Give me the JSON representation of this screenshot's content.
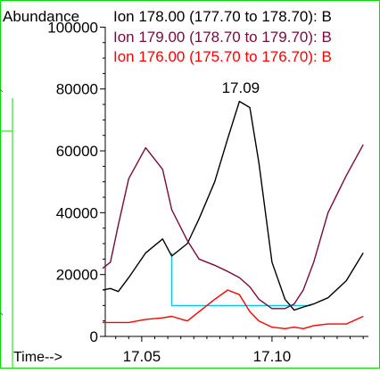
{
  "chart_data": {
    "type": "line",
    "ylabel": "Abundance",
    "xlabel": "Time-->",
    "xlim": [
      17.036,
      17.137
    ],
    "ylim": [
      0,
      103000
    ],
    "x_ticks": [
      17.05,
      17.1
    ],
    "x_tick_labels": [
      "17.05",
      "17.10"
    ],
    "y_ticks": [
      0,
      20000,
      40000,
      60000,
      80000,
      100000
    ],
    "y_tick_labels": [
      "0",
      "20000",
      "40000",
      "60000",
      "80000",
      "100000"
    ],
    "grid": false,
    "legend_position": "top",
    "annotations": [
      {
        "text": "17.09",
        "x": 17.088,
        "y": 77000
      }
    ],
    "baseline_segment": {
      "color": "#00c8e6",
      "x": [
        17.0615,
        17.0615,
        17.115
      ],
      "y": [
        27000,
        10000,
        10000
      ]
    },
    "series": [
      {
        "name": "Ion 178.00 (177.70 to 178.70): B",
        "color": "#000000",
        "x": [
          17.035,
          17.038,
          17.041,
          17.045,
          17.0515,
          17.058,
          17.0615,
          17.0675,
          17.072,
          17.078,
          17.083,
          17.0875,
          17.0915,
          17.095,
          17.1,
          17.105,
          17.1085,
          17.112,
          17.116,
          17.1215,
          17.1285,
          17.135
        ],
        "y": [
          15000,
          15500,
          14500,
          19000,
          27000,
          31500,
          26000,
          30000,
          38000,
          50000,
          64000,
          76000,
          74000,
          56000,
          24000,
          12000,
          8500,
          9500,
          10500,
          12500,
          18000,
          27000
        ]
      },
      {
        "name": "Ion 179.00 (178.70 to 179.70): B",
        "color": "#7a0a3c",
        "x": [
          17.035,
          17.038,
          17.041,
          17.045,
          17.0515,
          17.058,
          17.0615,
          17.0675,
          17.072,
          17.078,
          17.083,
          17.0875,
          17.0915,
          17.095,
          17.1,
          17.105,
          17.1085,
          17.112,
          17.116,
          17.1215,
          17.1285,
          17.135
        ],
        "y": [
          22000,
          24000,
          36000,
          51000,
          61000,
          54000,
          41000,
          31000,
          25000,
          23000,
          21000,
          19000,
          16000,
          12000,
          9000,
          9000,
          10500,
          15000,
          24000,
          40000,
          52000,
          62000
        ]
      },
      {
        "name": "Ion 176.00 (175.70 to 176.70): B",
        "color": "#ff0000",
        "x": [
          17.035,
          17.038,
          17.041,
          17.045,
          17.0515,
          17.058,
          17.0615,
          17.0675,
          17.072,
          17.078,
          17.083,
          17.0875,
          17.0915,
          17.095,
          17.1,
          17.105,
          17.1085,
          17.112,
          17.116,
          17.1215,
          17.1285,
          17.135
        ],
        "y": [
          4500,
          4500,
          4500,
          4500,
          5500,
          6000,
          6500,
          5000,
          8000,
          12000,
          15000,
          13500,
          8000,
          5000,
          3000,
          2500,
          3000,
          2500,
          3500,
          4000,
          4000,
          6500
        ]
      }
    ]
  }
}
